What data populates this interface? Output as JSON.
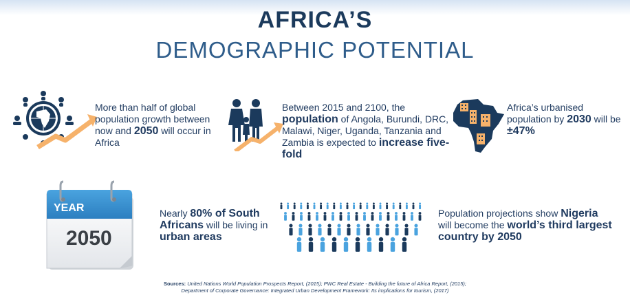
{
  "header": {
    "title": "AFRICA’S",
    "subtitle": "DEMOGRAPHIC POTENTIAL"
  },
  "colors": {
    "navy": "#1b3a5c",
    "blue": "#2e5c8a",
    "light_blue": "#4aa3df",
    "arrow_orange": "#f6b26b"
  },
  "facts": {
    "f1": {
      "a": "More than half of global population growth between now and ",
      "b": "2050",
      "c": " will occur in Africa"
    },
    "f2": {
      "a": "Between 2015 and 2100, the ",
      "b": "population",
      "c": " of Angola, Burundi, DRC, Malawi, Niger, Uganda, Tanzania and Zambia is expected to ",
      "d": "increase five-fold"
    },
    "f3": {
      "a": "Africa’s urbanised population by ",
      "b": "2030",
      "c": " will be ",
      "d": "±47%"
    },
    "f4": {
      "a": "Nearly ",
      "b": "80% of South Africans",
      "c": " will be living in ",
      "d": "urban areas"
    },
    "f5": {
      "a": "Population projections show ",
      "b": "Nigeria",
      "c": " will become the ",
      "d": "world’s third largest country by 2050"
    }
  },
  "calendar": {
    "label": "YEAR",
    "year": "2050"
  },
  "sources": {
    "label": "Sources:",
    "line1": " United Nations World Population Prospects Report, (2015);  PWC Real Estate - Building the future of Africa Report, (2015);",
    "line2": "Department of Corporate Governance: Integrated Urban Development Framework: Its implications for tourism, (2017)"
  }
}
